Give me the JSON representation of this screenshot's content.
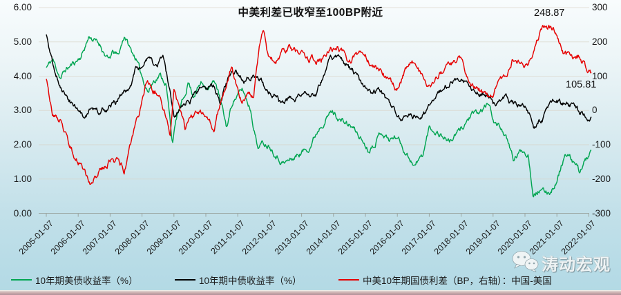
{
  "chart": {
    "title": "中美利差已收窄至100BP附近",
    "watermark": "涛动宏观",
    "watermark_icon": "wechat-icon",
    "annotations": [
      {
        "text": "248.87"
      },
      {
        "text": "105.81"
      }
    ],
    "legend": [
      {
        "label": "10年期美债收益率（%）",
        "color": "#00a551"
      },
      {
        "label": "10年期中债收益率（%）",
        "color": "#000000"
      },
      {
        "label": "中美10年期国债利差（BP，右轴）：中国-美国",
        "color": "#e60000"
      }
    ]
  },
  "chart_data": {
    "type": "line",
    "title": "中美利差已收窄至100BP附近",
    "grid": "horizontal",
    "legend_position": "bottom",
    "x_axis": {
      "labels": [
        "2005-01-07",
        "2006-01-07",
        "2007-01-07",
        "2008-01-07",
        "2009-01-07",
        "2010-01-07",
        "2011-01-07",
        "2012-01-07",
        "2013-01-07",
        "2014-01-07",
        "2015-01-07",
        "2016-01-07",
        "2017-01-07",
        "2018-01-07",
        "2019-01-07",
        "2020-01-07",
        "2021-01-07",
        "2022-01-07"
      ],
      "start_year": 2005,
      "end_year": 2022.08
    },
    "left_axis": {
      "min": 0,
      "max": 6,
      "tick_labels": [
        "6.00",
        "5.00",
        "4.00",
        "3.00",
        "2.00",
        "1.00",
        "0.00"
      ]
    },
    "right_axis": {
      "min": -300,
      "max": 300,
      "tick_labels": [
        "300",
        "200",
        "100",
        "0",
        "-100",
        "-200",
        "-300"
      ]
    },
    "annotations": [
      {
        "text": "248.87",
        "series": "中美10年期国债利差（BP，右轴）：中国-美国",
        "t": 2020.62,
        "value": 248.87
      },
      {
        "text": "105.81",
        "series": "中美10年期国债利差（BP，右轴）：中国-美国",
        "t": 2022.05,
        "value": 105.81
      }
    ],
    "series": [
      {
        "name": "10年期美债收益率（%）",
        "axis": "left",
        "color": "#00a551",
        "points": [
          [
            2005.0,
            4.25
          ],
          [
            2005.2,
            4.48
          ],
          [
            2005.45,
            3.95
          ],
          [
            2005.6,
            4.18
          ],
          [
            2005.8,
            4.33
          ],
          [
            2005.95,
            4.45
          ],
          [
            2006.1,
            4.6
          ],
          [
            2006.35,
            5.18
          ],
          [
            2006.5,
            5.05
          ],
          [
            2006.7,
            4.9
          ],
          [
            2006.95,
            4.45
          ],
          [
            2007.1,
            4.7
          ],
          [
            2007.25,
            4.58
          ],
          [
            2007.45,
            5.2
          ],
          [
            2007.65,
            4.75
          ],
          [
            2007.8,
            4.55
          ],
          [
            2007.95,
            4.1
          ],
          [
            2008.2,
            3.55
          ],
          [
            2008.35,
            3.85
          ],
          [
            2008.55,
            4.05
          ],
          [
            2008.75,
            3.8
          ],
          [
            2008.95,
            2.1
          ],
          [
            2009.1,
            2.85
          ],
          [
            2009.3,
            3.3
          ],
          [
            2009.45,
            3.85
          ],
          [
            2009.6,
            3.45
          ],
          [
            2009.85,
            3.8
          ],
          [
            2010.1,
            3.7
          ],
          [
            2010.3,
            3.85
          ],
          [
            2010.45,
            3.3
          ],
          [
            2010.65,
            2.5
          ],
          [
            2010.85,
            3.3
          ],
          [
            2011.15,
            3.6
          ],
          [
            2011.4,
            3.05
          ],
          [
            2011.62,
            1.95
          ],
          [
            2011.8,
            2.05
          ],
          [
            2012.0,
            2.0
          ],
          [
            2012.3,
            1.6
          ],
          [
            2012.45,
            1.47
          ],
          [
            2012.7,
            1.58
          ],
          [
            2012.95,
            1.75
          ],
          [
            2013.25,
            1.95
          ],
          [
            2013.6,
            2.6
          ],
          [
            2013.95,
            2.98
          ],
          [
            2014.25,
            2.7
          ],
          [
            2014.6,
            2.5
          ],
          [
            2014.85,
            2.2
          ],
          [
            2015.1,
            1.85
          ],
          [
            2015.3,
            2.1
          ],
          [
            2015.5,
            2.4
          ],
          [
            2015.75,
            2.15
          ],
          [
            2016.0,
            2.25
          ],
          [
            2016.25,
            1.8
          ],
          [
            2016.55,
            1.4
          ],
          [
            2016.8,
            1.7
          ],
          [
            2017.0,
            2.5
          ],
          [
            2017.3,
            2.35
          ],
          [
            2017.65,
            2.1
          ],
          [
            2017.95,
            2.4
          ],
          [
            2018.3,
            2.85
          ],
          [
            2018.55,
            2.9
          ],
          [
            2018.85,
            3.2
          ],
          [
            2019.05,
            2.65
          ],
          [
            2019.3,
            2.45
          ],
          [
            2019.65,
            1.55
          ],
          [
            2019.9,
            1.85
          ],
          [
            2020.1,
            1.75
          ],
          [
            2020.25,
            0.62
          ],
          [
            2020.45,
            0.68
          ],
          [
            2020.62,
            0.58
          ],
          [
            2020.8,
            0.65
          ],
          [
            2021.0,
            0.95
          ],
          [
            2021.25,
            1.7
          ],
          [
            2021.5,
            1.5
          ],
          [
            2021.7,
            1.22
          ],
          [
            2021.9,
            1.55
          ],
          [
            2022.08,
            1.76
          ]
        ]
      },
      {
        "name": "10年期中债收益率（%）",
        "axis": "left",
        "color": "#000000",
        "points": [
          [
            2005.0,
            5.2
          ],
          [
            2005.2,
            4.35
          ],
          [
            2005.45,
            3.7
          ],
          [
            2005.7,
            3.3
          ],
          [
            2005.95,
            3.05
          ],
          [
            2006.15,
            2.88
          ],
          [
            2006.4,
            3.05
          ],
          [
            2006.65,
            2.95
          ],
          [
            2006.9,
            3.05
          ],
          [
            2007.15,
            3.2
          ],
          [
            2007.4,
            3.45
          ],
          [
            2007.6,
            3.6
          ],
          [
            2007.8,
            4.2
          ],
          [
            2008.0,
            4.3
          ],
          [
            2008.2,
            4.5
          ],
          [
            2008.4,
            4.25
          ],
          [
            2008.65,
            4.55
          ],
          [
            2008.85,
            3.7
          ],
          [
            2009.0,
            2.75
          ],
          [
            2009.2,
            3.1
          ],
          [
            2009.5,
            3.3
          ],
          [
            2009.8,
            3.58
          ],
          [
            2010.05,
            3.55
          ],
          [
            2010.25,
            3.7
          ],
          [
            2010.45,
            3.25
          ],
          [
            2010.7,
            3.9
          ],
          [
            2010.95,
            4.05
          ],
          [
            2011.2,
            3.9
          ],
          [
            2011.5,
            4.0
          ],
          [
            2011.75,
            3.95
          ],
          [
            2011.95,
            3.55
          ],
          [
            2012.15,
            3.5
          ],
          [
            2012.35,
            3.2
          ],
          [
            2012.65,
            3.35
          ],
          [
            2012.95,
            3.45
          ],
          [
            2013.2,
            3.55
          ],
          [
            2013.45,
            3.5
          ],
          [
            2013.7,
            4.1
          ],
          [
            2013.9,
            4.65
          ],
          [
            2014.15,
            4.5
          ],
          [
            2014.35,
            4.4
          ],
          [
            2014.65,
            4.1
          ],
          [
            2014.9,
            3.7
          ],
          [
            2015.15,
            3.5
          ],
          [
            2015.4,
            3.55
          ],
          [
            2015.65,
            3.3
          ],
          [
            2015.9,
            3.0
          ],
          [
            2016.1,
            2.78
          ],
          [
            2016.4,
            2.92
          ],
          [
            2016.65,
            2.78
          ],
          [
            2016.9,
            2.95
          ],
          [
            2017.15,
            3.4
          ],
          [
            2017.45,
            3.65
          ],
          [
            2017.75,
            3.9
          ],
          [
            2017.98,
            3.92
          ],
          [
            2018.25,
            3.7
          ],
          [
            2018.55,
            3.55
          ],
          [
            2018.85,
            3.42
          ],
          [
            2019.1,
            3.15
          ],
          [
            2019.4,
            3.35
          ],
          [
            2019.7,
            3.1
          ],
          [
            2019.95,
            3.2
          ],
          [
            2020.1,
            3.0
          ],
          [
            2020.3,
            2.5
          ],
          [
            2020.55,
            2.75
          ],
          [
            2020.75,
            3.05
          ],
          [
            2020.95,
            3.3
          ],
          [
            2021.2,
            3.2
          ],
          [
            2021.45,
            3.1
          ],
          [
            2021.7,
            2.92
          ],
          [
            2021.9,
            2.88
          ],
          [
            2022.08,
            2.78
          ]
        ]
      },
      {
        "name": "中美10年期国债利差（BP，右轴）：中国-美国",
        "axis": "right",
        "color": "#e60000",
        "points": [
          [
            2005.0,
            95
          ],
          [
            2005.2,
            -10
          ],
          [
            2005.45,
            -25
          ],
          [
            2005.7,
            -100
          ],
          [
            2005.95,
            -140
          ],
          [
            2006.15,
            -170
          ],
          [
            2006.35,
            -218
          ],
          [
            2006.55,
            -195
          ],
          [
            2006.8,
            -160
          ],
          [
            2007.0,
            -150
          ],
          [
            2007.2,
            -148
          ],
          [
            2007.45,
            -175
          ],
          [
            2007.6,
            -110
          ],
          [
            2007.8,
            -40
          ],
          [
            2007.98,
            10
          ],
          [
            2008.15,
            80
          ],
          [
            2008.35,
            60
          ],
          [
            2008.55,
            50
          ],
          [
            2008.75,
            -20
          ],
          [
            2008.88,
            -65
          ],
          [
            2009.0,
            70
          ],
          [
            2009.15,
            15
          ],
          [
            2009.35,
            -55
          ],
          [
            2009.6,
            -15
          ],
          [
            2009.85,
            -8
          ],
          [
            2010.05,
            -22
          ],
          [
            2010.25,
            -45
          ],
          [
            2010.55,
            55
          ],
          [
            2010.8,
            130
          ],
          [
            2011.0,
            65
          ],
          [
            2011.13,
            35
          ],
          [
            2011.3,
            60
          ],
          [
            2011.5,
            42
          ],
          [
            2011.68,
            200
          ],
          [
            2011.8,
            228
          ],
          [
            2011.95,
            150
          ],
          [
            2012.2,
            145
          ],
          [
            2012.45,
            175
          ],
          [
            2012.65,
            185
          ],
          [
            2012.9,
            165
          ],
          [
            2013.15,
            155
          ],
          [
            2013.4,
            150
          ],
          [
            2013.6,
            140
          ],
          [
            2013.9,
            180
          ],
          [
            2014.15,
            185
          ],
          [
            2014.45,
            145
          ],
          [
            2014.7,
            160
          ],
          [
            2015.0,
            155
          ],
          [
            2015.35,
            125
          ],
          [
            2015.6,
            100
          ],
          [
            2016.0,
            65
          ],
          [
            2016.3,
            120
          ],
          [
            2016.55,
            140
          ],
          [
            2016.9,
            62
          ],
          [
            2017.15,
            90
          ],
          [
            2017.45,
            120
          ],
          [
            2017.95,
            155
          ],
          [
            2018.3,
            85
          ],
          [
            2018.6,
            60
          ],
          [
            2018.88,
            28
          ],
          [
            2019.15,
            70
          ],
          [
            2019.35,
            95
          ],
          [
            2019.65,
            152
          ],
          [
            2019.95,
            128
          ],
          [
            2020.1,
            120
          ],
          [
            2020.3,
            195
          ],
          [
            2020.45,
            225
          ],
          [
            2020.62,
            249
          ],
          [
            2020.8,
            242
          ],
          [
            2020.95,
            238
          ],
          [
            2021.2,
            168
          ],
          [
            2021.45,
            155
          ],
          [
            2021.7,
            158
          ],
          [
            2021.9,
            132
          ],
          [
            2022.08,
            106
          ]
        ]
      }
    ]
  }
}
